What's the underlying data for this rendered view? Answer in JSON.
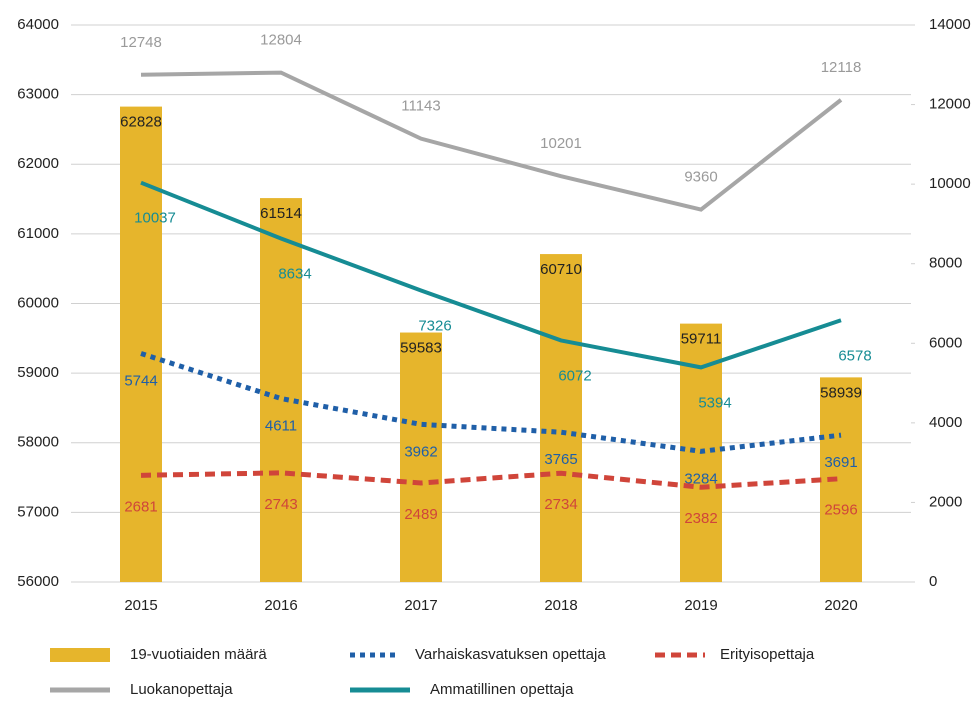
{
  "chart_data": {
    "type": "bar",
    "categories": [
      "2015",
      "2016",
      "2017",
      "2018",
      "2019",
      "2020"
    ],
    "ylim": [
      56000,
      64000
    ],
    "yticks": [
      56000,
      57000,
      58000,
      59000,
      60000,
      61000,
      62000,
      63000,
      64000
    ],
    "y2lim": [
      0,
      14000
    ],
    "y2ticks": [
      0,
      2000,
      4000,
      6000,
      8000,
      10000,
      12000,
      14000
    ],
    "grid": true,
    "legend": "bottom",
    "series": [
      {
        "name": "19-vuotiaiden määrä",
        "type": "bar",
        "color": "#e6b52c",
        "values": [
          62828,
          61514,
          59583,
          60710,
          59711,
          58939
        ]
      },
      {
        "name": "Varhaiskasvatuksen opettaja",
        "type": "line",
        "style": "dotted",
        "axis": "y2",
        "color": "#1f5fa8",
        "values": [
          5744,
          4611,
          3962,
          3765,
          3284,
          3691
        ]
      },
      {
        "name": "Erityisopettaja",
        "type": "line",
        "style": "dashed",
        "axis": "y2",
        "color": "#d0453a",
        "values": [
          2681,
          2743,
          2489,
          2734,
          2382,
          2596
        ]
      },
      {
        "name": "Luokanopettaja",
        "type": "line",
        "style": "solid",
        "axis": "y2",
        "color": "#a6a6a6",
        "values": [
          12748,
          12804,
          11143,
          10201,
          9360,
          12118
        ]
      },
      {
        "name": "Ammatillinen opettaja",
        "type": "line",
        "style": "solid",
        "axis": "y2",
        "color": "#168c94",
        "values": [
          10037,
          8634,
          7326,
          6072,
          5394,
          6578
        ]
      }
    ]
  }
}
